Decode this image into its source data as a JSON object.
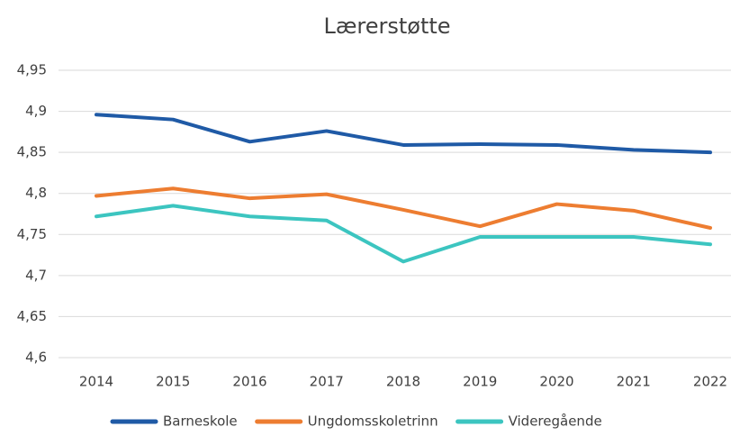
{
  "chart_data": {
    "type": "line",
    "title": "Lærerstøtte",
    "categories": [
      "2014",
      "2015",
      "2016",
      "2017",
      "2018",
      "2019",
      "2020",
      "2021",
      "2022"
    ],
    "series": [
      {
        "name": "Barneskole",
        "color": "#1f5aa6",
        "values": [
          4.896,
          4.89,
          4.863,
          4.876,
          4.859,
          4.86,
          4.859,
          4.853,
          4.85
        ]
      },
      {
        "name": "Ungdomsskoletrinn",
        "color": "#ed7d31",
        "values": [
          4.797,
          4.806,
          4.794,
          4.799,
          4.78,
          4.76,
          4.787,
          4.779,
          4.758
        ]
      },
      {
        "name": "Videregående",
        "color": "#3cc5c0",
        "values": [
          4.772,
          4.785,
          4.772,
          4.767,
          4.717,
          4.747,
          4.747,
          4.747,
          4.738
        ]
      }
    ],
    "ylim": [
      4.6,
      4.95
    ],
    "yticks": [
      {
        "value": 4.6,
        "label": "4,6"
      },
      {
        "value": 4.65,
        "label": "4,65"
      },
      {
        "value": 4.7,
        "label": "4,7"
      },
      {
        "value": 4.75,
        "label": "4,75"
      },
      {
        "value": 4.8,
        "label": "4,8"
      },
      {
        "value": 4.85,
        "label": "4,85"
      },
      {
        "value": 4.9,
        "label": "4,9"
      },
      {
        "value": 4.95,
        "label": "4,95"
      }
    ],
    "grid": true,
    "legend": "bottom"
  }
}
